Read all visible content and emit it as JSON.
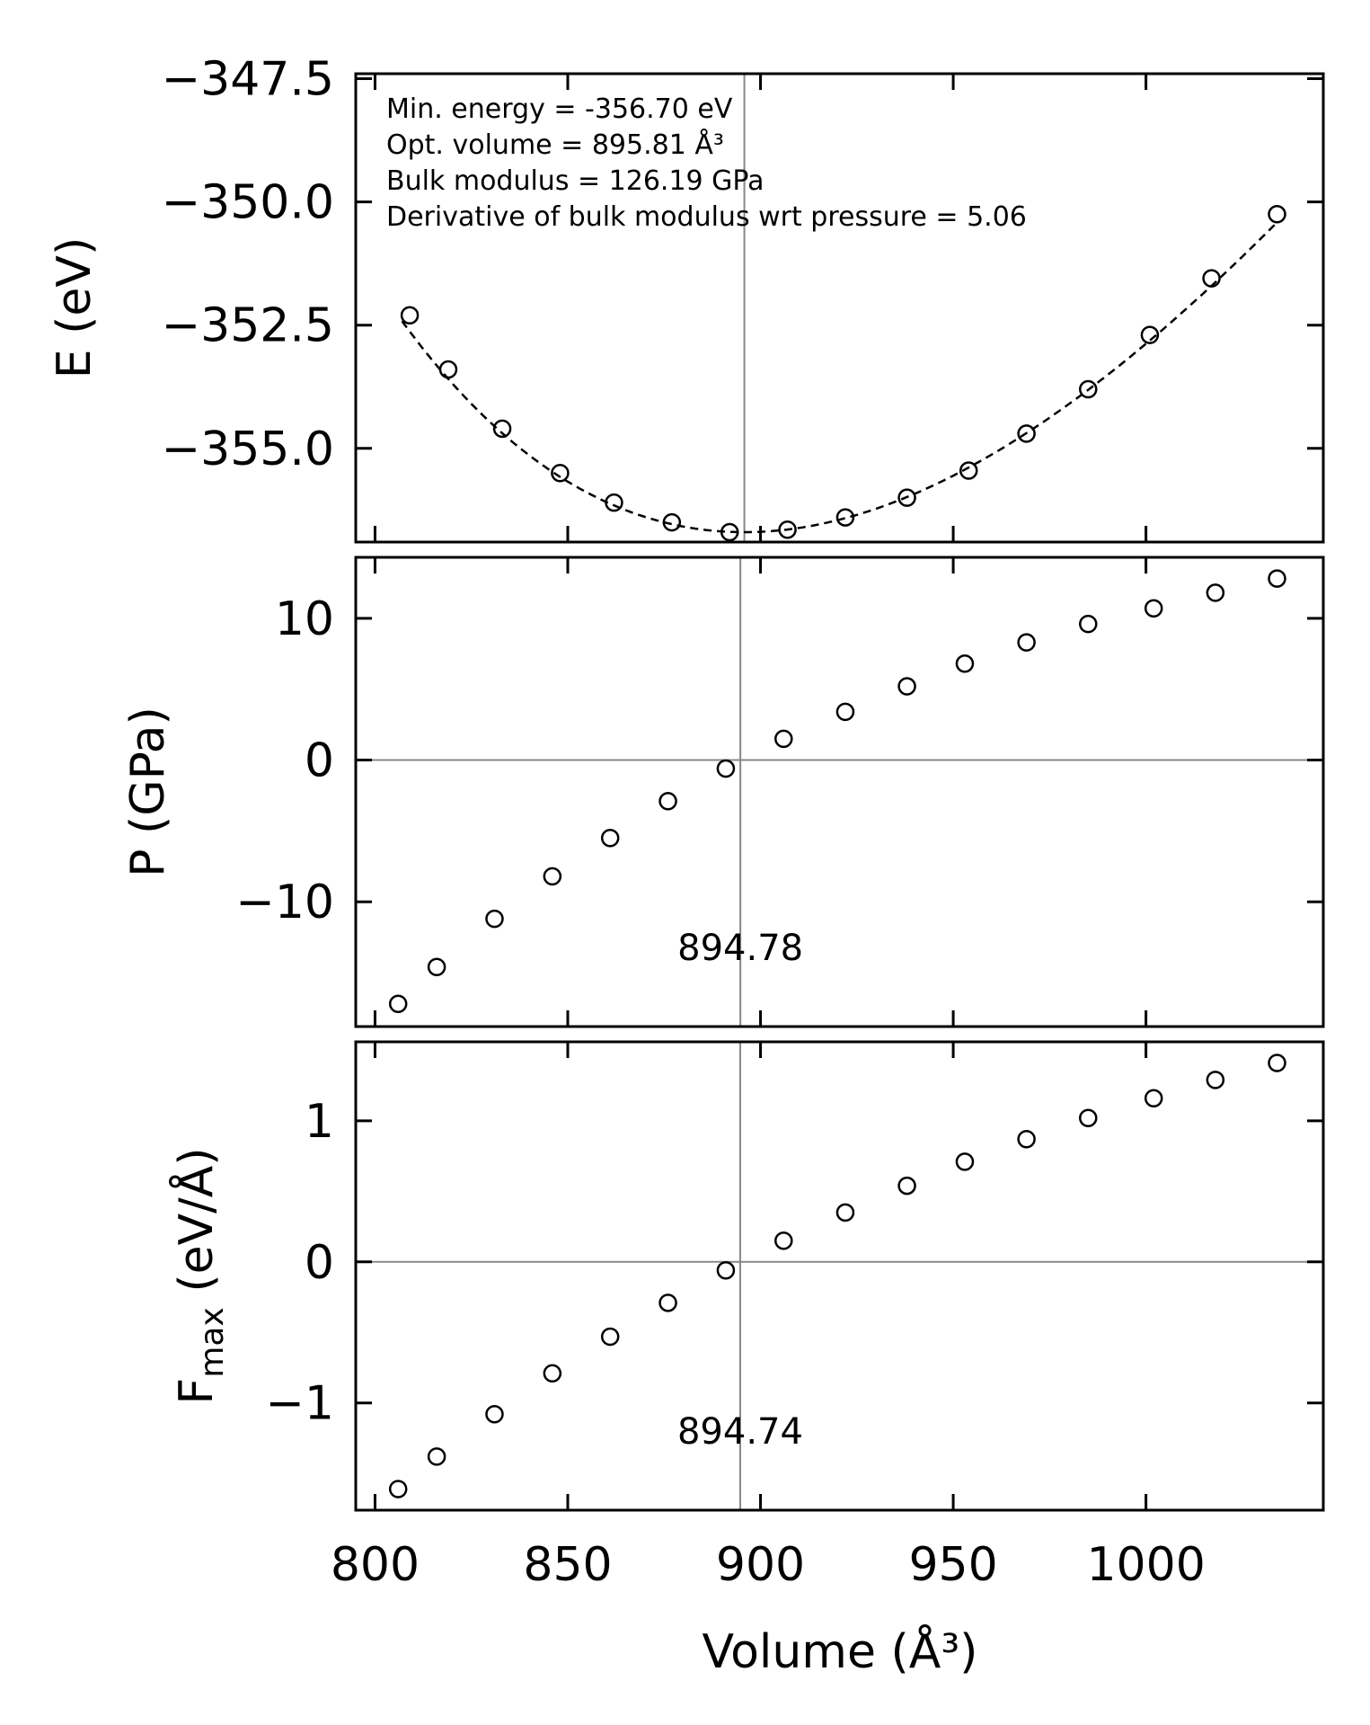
{
  "chart_data": [
    {
      "type": "scatter",
      "panel": "energy",
      "ylabel": "E (eV)",
      "xlim": [
        795,
        1046
      ],
      "ylim": [
        -356.9,
        -347.4
      ],
      "yticks": [
        -347.5,
        -350.0,
        -352.5,
        -355.0
      ],
      "ytick_labels": [
        "−347.5",
        "−350.0",
        "−352.5",
        "−355.0"
      ],
      "xticks": [
        800,
        850,
        900,
        950,
        1000
      ],
      "vline": 895.81,
      "annotations": [
        "Min. energy = -356.70 eV",
        "Opt. volume = 895.81 Å³",
        "Bulk modulus = 126.19 GPa",
        "Derivative of bulk modulus wrt pressure = 5.06"
      ],
      "fit": {
        "style": "dashed",
        "E0": -356.7,
        "V0": 895.81,
        "B0_GPa": 126.19,
        "B0p": 5.06,
        "x_range": [
          807,
          1034
        ]
      },
      "x": [
        809,
        819,
        833,
        848,
        862,
        877,
        892,
        907,
        922,
        938,
        954,
        969,
        985,
        1001,
        1017,
        1034
      ],
      "y": [
        -352.3,
        -353.4,
        -354.6,
        -355.5,
        -356.1,
        -356.5,
        -356.7,
        -356.65,
        -356.4,
        -356.0,
        -355.45,
        -354.7,
        -353.8,
        -352.7,
        -351.55,
        -350.25
      ]
    },
    {
      "type": "scatter",
      "panel": "pressure",
      "ylabel": "P (GPa)",
      "xlim": [
        795,
        1046
      ],
      "ylim": [
        -18.8,
        14.3
      ],
      "yticks": [
        10,
        0,
        -10
      ],
      "ytick_labels": [
        "10",
        "0",
        "−10"
      ],
      "xticks": [
        800,
        850,
        900,
        950,
        1000
      ],
      "vline": 894.78,
      "hline": 0,
      "vline_label": "894.78",
      "x": [
        806,
        816,
        831,
        846,
        861,
        876,
        891,
        906,
        922,
        938,
        953,
        969,
        985,
        1002,
        1018,
        1034
      ],
      "y": [
        -17.2,
        -14.6,
        -11.2,
        -8.2,
        -5.5,
        -2.9,
        -0.6,
        1.5,
        3.4,
        5.2,
        6.8,
        8.3,
        9.6,
        10.7,
        11.8,
        12.8
      ]
    },
    {
      "type": "scatter",
      "panel": "force",
      "ylabel_main": "F",
      "ylabel_sub": "max",
      "ylabel_rest": " (eV/Å)",
      "xlabel": "Volume (Å³)",
      "xlim": [
        795,
        1046
      ],
      "ylim": [
        -1.76,
        1.56
      ],
      "yticks": [
        1,
        0,
        -1
      ],
      "ytick_labels": [
        "1",
        "0",
        "−1"
      ],
      "xticks": [
        800,
        850,
        900,
        950,
        1000
      ],
      "xtick_labels": [
        "800",
        "850",
        "900",
        "950",
        "1000"
      ],
      "vline": 894.74,
      "hline": 0,
      "vline_label": "894.74",
      "x": [
        806,
        816,
        831,
        846,
        861,
        876,
        891,
        906,
        922,
        938,
        953,
        969,
        985,
        1002,
        1018,
        1034
      ],
      "y": [
        -1.61,
        -1.38,
        -1.08,
        -0.79,
        -0.53,
        -0.29,
        -0.06,
        0.15,
        0.35,
        0.54,
        0.71,
        0.87,
        1.02,
        1.16,
        1.29,
        1.41
      ]
    }
  ]
}
